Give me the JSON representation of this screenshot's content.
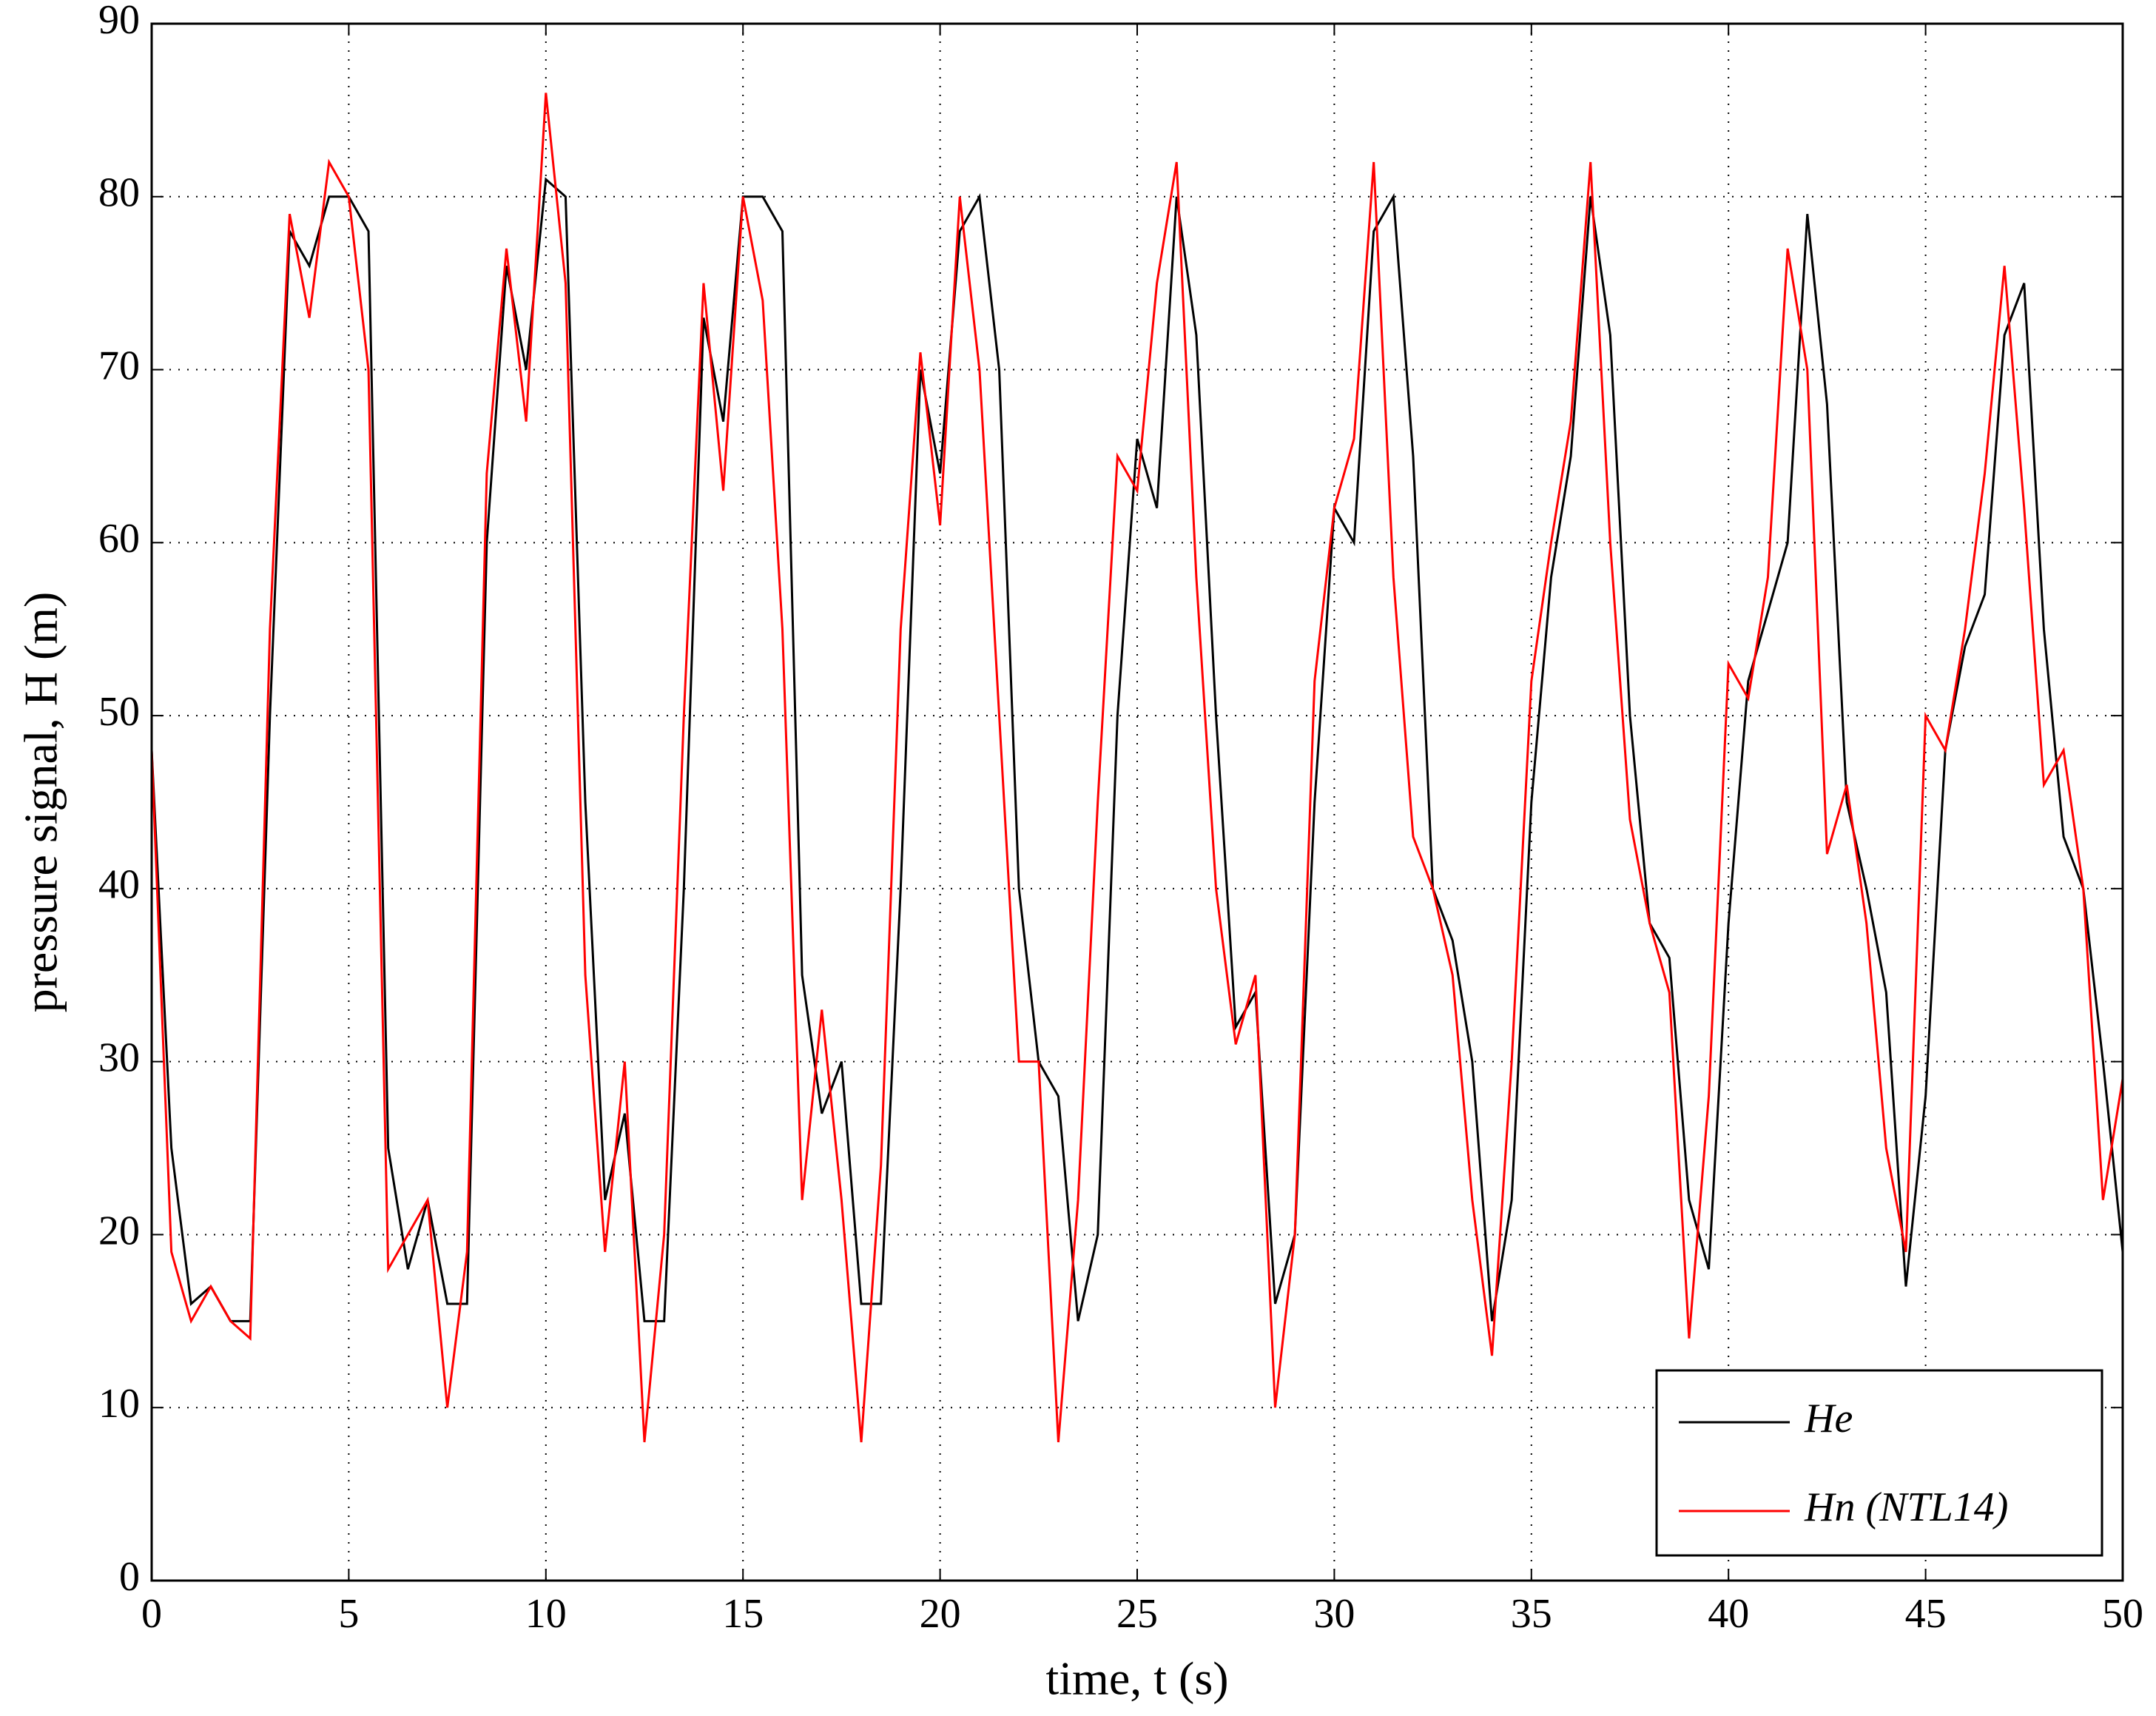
{
  "chart_data": {
    "type": "line",
    "xlabel": "time, t (s)",
    "ylabel": "pressure signal, H (m)",
    "x": [
      0,
      0.5,
      1,
      1.5,
      2,
      2.5,
      3,
      3.5,
      4,
      4.5,
      5,
      5.5,
      6,
      6.5,
      7,
      7.5,
      8,
      8.5,
      9,
      9.5,
      10,
      10.5,
      11,
      11.5,
      12,
      12.5,
      13,
      13.5,
      14,
      14.5,
      15,
      15.5,
      16,
      16.5,
      17,
      17.5,
      18,
      18.5,
      19,
      19.5,
      20,
      20.5,
      21,
      21.5,
      22,
      22.5,
      23,
      23.5,
      24,
      24.5,
      25,
      25.5,
      26,
      26.5,
      27,
      27.5,
      28,
      28.5,
      29,
      29.5,
      30,
      30.5,
      31,
      31.5,
      32,
      32.5,
      33,
      33.5,
      34,
      34.5,
      35,
      35.5,
      36,
      36.5,
      37,
      37.5,
      38,
      38.5,
      39,
      39.5,
      40,
      40.5,
      41,
      41.5,
      42,
      42.5,
      43,
      43.5,
      44,
      44.5,
      45,
      45.5,
      46,
      46.5,
      47,
      47.5,
      48,
      48.5,
      49,
      49.5,
      50
    ],
    "series": [
      {
        "name": "He",
        "color": "#000000",
        "values": [
          48,
          25,
          16,
          17,
          15,
          15,
          50,
          78,
          76,
          80,
          80,
          78,
          25,
          18,
          22,
          16,
          16,
          60,
          76,
          70,
          81,
          80,
          45,
          22,
          27,
          15,
          15,
          40,
          73,
          67,
          80,
          80,
          78,
          35,
          27,
          30,
          16,
          16,
          40,
          70,
          64,
          78,
          80,
          70,
          40,
          30,
          28,
          15,
          20,
          50,
          66,
          62,
          80,
          72,
          50,
          32,
          34,
          16,
          20,
          45,
          62,
          60,
          78,
          80,
          65,
          40,
          37,
          30,
          15,
          22,
          45,
          58,
          65,
          80,
          72,
          50,
          38,
          36,
          22,
          18,
          38,
          52,
          56,
          60,
          79,
          68,
          45,
          40,
          34,
          17,
          28,
          48,
          54,
          57,
          72,
          75,
          55,
          43,
          40,
          30,
          19
        ]
      },
      {
        "name": "Hn (NTL14)",
        "color": "#ff0000",
        "values": [
          48,
          19,
          15,
          17,
          15,
          14,
          55,
          79,
          73,
          82,
          80,
          70,
          18,
          20,
          22,
          10,
          19,
          64,
          77,
          67,
          86,
          75,
          35,
          19,
          30,
          8,
          20,
          50,
          75,
          63,
          80,
          74,
          55,
          22,
          33,
          22,
          8,
          24,
          55,
          71,
          61,
          80,
          70,
          50,
          30,
          30,
          8,
          22,
          45,
          65,
          63,
          75,
          82,
          58,
          40,
          31,
          35,
          10,
          20,
          52,
          62,
          66,
          82,
          58,
          43,
          40,
          35,
          22,
          13,
          30,
          52,
          60,
          67,
          82,
          60,
          44,
          38,
          34,
          14,
          28,
          53,
          51,
          58,
          77,
          70,
          42,
          46,
          38,
          25,
          19,
          50,
          48,
          55,
          64,
          76,
          62,
          46,
          48,
          40,
          22,
          29
        ]
      }
    ],
    "xlim": [
      0,
      50
    ],
    "xticks": [
      0,
      5,
      10,
      15,
      20,
      25,
      30,
      35,
      40,
      45,
      50
    ],
    "ylim": [
      0,
      90
    ],
    "yticks": [
      0,
      10,
      20,
      30,
      40,
      50,
      60,
      70,
      80,
      90
    ],
    "grid": true,
    "legend": "lower right"
  }
}
